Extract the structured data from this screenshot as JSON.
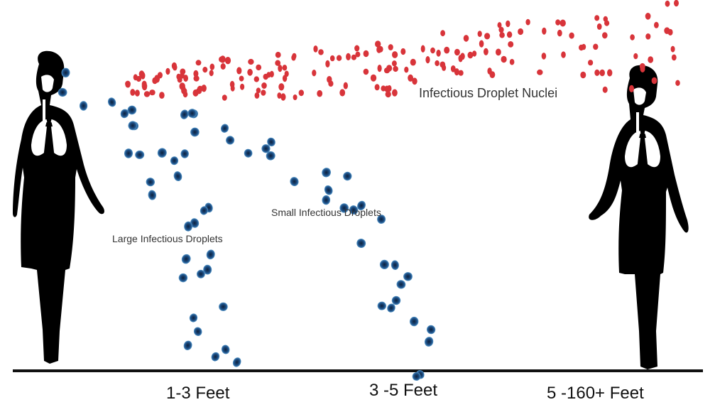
{
  "labels": {
    "large_droplets": "Large Infectious Droplets",
    "small_droplets": "Small Infectious Droplets",
    "droplet_nuclei": "Infectious Droplet Nuclei"
  },
  "distances": {
    "near": "1-3 Feet",
    "mid": "3 -5 Feet",
    "far": "5 -160+ Feet"
  },
  "colors": {
    "silhouette": "#000000",
    "lungs": "#ffffff",
    "large_droplet": "#1d4f86",
    "droplet_nucleus": "#d8343a",
    "ground": "#111111"
  },
  "icons": {
    "left_person": "person-silhouette-icon",
    "right_person": "person-silhouette-icon"
  }
}
